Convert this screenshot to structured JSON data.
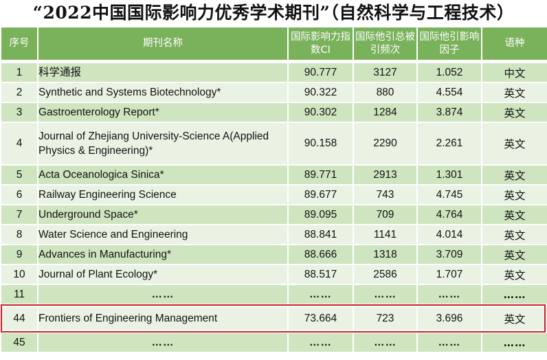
{
  "title": "“2022中国国际影响力优秀学术期刊”（自然科学与工程技术）",
  "columns": {
    "rank": "序号",
    "name": "期刊名称",
    "ci": "国际影响力指数CI",
    "citations": "国际他引总被引频次",
    "impact": "国际他引影响因子",
    "language": "语种"
  },
  "rows": [
    {
      "rank": "1",
      "name": "科学通报",
      "ci": "90.777",
      "citations": "3127",
      "impact": "1.052",
      "language": "中文"
    },
    {
      "rank": "2",
      "name": "Synthetic and Systems Biotechnology*",
      "ci": "90.322",
      "citations": "880",
      "impact": "4.554",
      "language": "英文"
    },
    {
      "rank": "3",
      "name": "Gastroenterology Report*",
      "ci": "90.302",
      "citations": "1284",
      "impact": "3.874",
      "language": "英文"
    },
    {
      "rank": "4",
      "name": "Journal of Zhejiang University-Science A(Applied Physics & Engineering)*",
      "ci": "90.158",
      "citations": "2290",
      "impact": "2.261",
      "language": "英文"
    },
    {
      "rank": "5",
      "name": "Acta Oceanologica Sinica*",
      "ci": "89.771",
      "citations": "2913",
      "impact": "1.301",
      "language": "英文"
    },
    {
      "rank": "6",
      "name": "Railway Engineering Science",
      "ci": "89.677",
      "citations": "743",
      "impact": "4.745",
      "language": "英文"
    },
    {
      "rank": "7",
      "name": "Underground Space*",
      "ci": "89.095",
      "citations": "709",
      "impact": "4.764",
      "language": "英文"
    },
    {
      "rank": "8",
      "name": "Water Science and Engineering",
      "ci": "88.841",
      "citations": "1141",
      "impact": "4.014",
      "language": "英文"
    },
    {
      "rank": "9",
      "name": "Advances in Manufacturing*",
      "ci": "88.666",
      "citations": "1318",
      "impact": "3.709",
      "language": "英文"
    },
    {
      "rank": "10",
      "name": "Journal of Plant Ecology*",
      "ci": "88.517",
      "citations": "2586",
      "impact": "1.707",
      "language": "英文"
    },
    {
      "rank": "11",
      "name": "……",
      "ci": "……",
      "citations": "……",
      "impact": "……",
      "language": "……"
    },
    {
      "rank": "44",
      "name": "Frontiers of Engineering Management",
      "ci": "73.664",
      "citations": "723",
      "impact": "3.696",
      "language": "英文"
    },
    {
      "rank": "45",
      "name": "……",
      "ci": "……",
      "citations": "……",
      "impact": "……",
      "language": "……"
    }
  ]
}
